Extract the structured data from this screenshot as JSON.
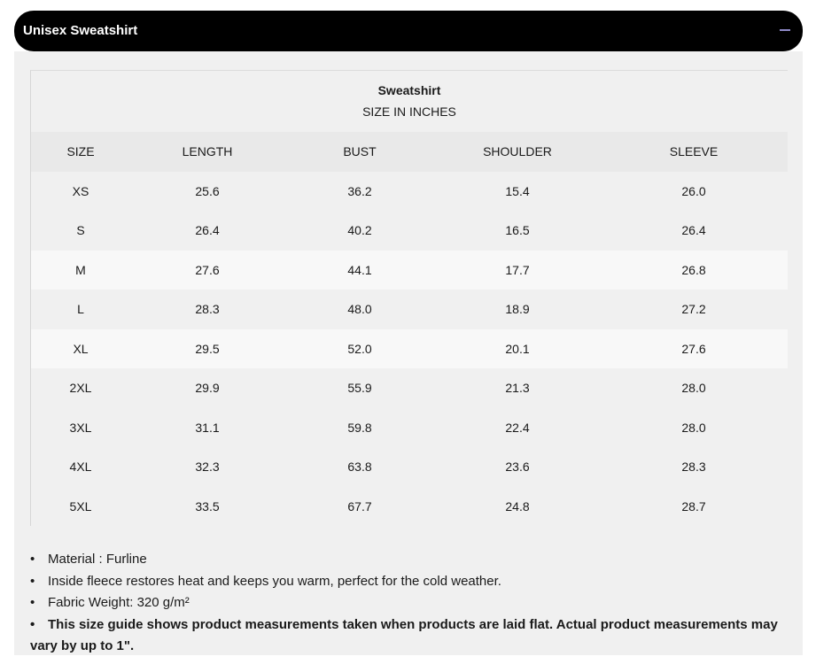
{
  "header": {
    "title": "Unisex Sweatshirt"
  },
  "table": {
    "title": "Sweatshirt",
    "subtitle": "SIZE IN INCHES",
    "columns": [
      "SIZE",
      "LENGTH",
      "BUST",
      "SHOULDER",
      "SLEEVE"
    ],
    "rows": [
      [
        "XS",
        "25.6",
        "36.2",
        "15.4",
        "26.0"
      ],
      [
        "S",
        "26.4",
        "40.2",
        "16.5",
        "26.4"
      ],
      [
        "M",
        "27.6",
        "44.1",
        "17.7",
        "26.8"
      ],
      [
        "L",
        "28.3",
        "48.0",
        "18.9",
        "27.2"
      ],
      [
        "XL",
        "29.5",
        "52.0",
        "20.1",
        "27.6"
      ],
      [
        "2XL",
        "29.9",
        "55.9",
        "21.3",
        "28.0"
      ],
      [
        "3XL",
        "31.1",
        "59.8",
        "22.4",
        "28.0"
      ],
      [
        "4XL",
        "32.3",
        "63.8",
        "23.6",
        "28.3"
      ],
      [
        "5XL",
        "33.5",
        "67.7",
        "24.8",
        "28.7"
      ]
    ]
  },
  "notes": [
    "Material : Furline",
    "Inside fleece restores heat and keeps you warm, perfect for the cold weather.",
    "Fabric Weight: 320 g/m²",
    "This size guide shows product measurements taken when products are laid flat. Actual product measurements may vary by up to 1\"."
  ]
}
